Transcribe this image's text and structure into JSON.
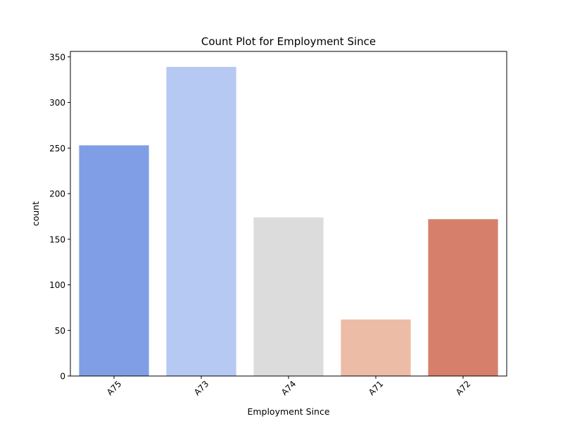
{
  "chart_data": {
    "type": "bar",
    "title": "Count Plot for Employment Since",
    "xlabel": "Employment Since",
    "ylabel": "count",
    "categories": [
      "A75",
      "A73",
      "A74",
      "A71",
      "A72"
    ],
    "values": [
      253,
      339,
      174,
      62,
      172
    ],
    "colors": [
      "#7f9ee6",
      "#b5c9f3",
      "#dcdcdc",
      "#edbca6",
      "#d6806b"
    ],
    "ylim": [
      0,
      356
    ],
    "yticks": [
      0,
      50,
      100,
      150,
      200,
      250,
      300,
      350
    ],
    "grid": false,
    "legend": "none"
  }
}
